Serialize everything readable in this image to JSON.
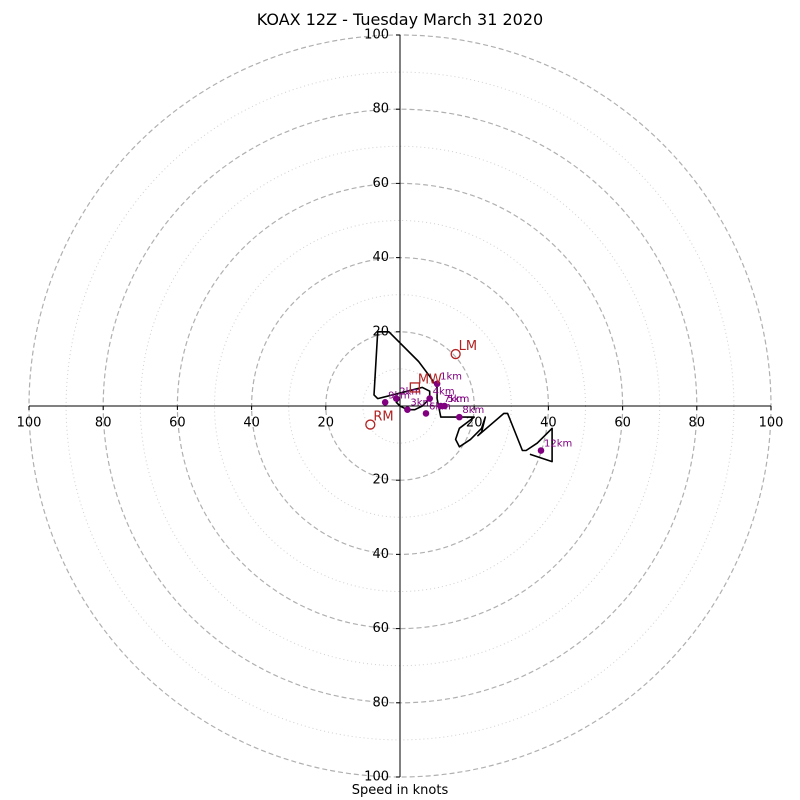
{
  "chart_data": {
    "type": "scatter",
    "title": "KOAX 12Z - Tuesday March 31 2020",
    "xlabel": "Speed in knots",
    "ylabel": "",
    "xlim": [
      -100,
      100
    ],
    "ylim": [
      -100,
      100
    ],
    "grid": "polar",
    "rings_dashed": [
      20,
      40,
      60,
      80,
      100
    ],
    "rings_dotted": [
      10,
      30,
      50,
      70,
      90
    ],
    "tick_values": [
      100,
      80,
      60,
      40,
      20
    ],
    "tick_labels": {
      "x_left": [
        "100",
        "80",
        "60",
        "40",
        "20"
      ],
      "x_right": [
        "20",
        "40",
        "60",
        "80",
        "100"
      ],
      "y_top": [
        "100",
        "80",
        "60",
        "40",
        "20"
      ],
      "y_bottom": [
        "20",
        "40",
        "60",
        "80",
        "100"
      ]
    },
    "hodograph": {
      "color": "#000000",
      "points": [
        [
          0,
          2
        ],
        [
          -1,
          1
        ],
        [
          0,
          0
        ],
        [
          2,
          -1
        ],
        [
          4,
          -1
        ],
        [
          6,
          0
        ],
        [
          8,
          2
        ],
        [
          8,
          4
        ],
        [
          6,
          5
        ],
        [
          2,
          4
        ],
        [
          -6,
          2
        ],
        [
          -7,
          3
        ],
        [
          -6,
          20
        ],
        [
          -3,
          20
        ],
        [
          5,
          12
        ],
        [
          8,
          8
        ],
        [
          10,
          5
        ],
        [
          10,
          2
        ],
        [
          11,
          -3
        ],
        [
          16,
          -3
        ],
        [
          20,
          -3
        ],
        [
          16,
          -6
        ],
        [
          15,
          -9
        ],
        [
          16,
          -11
        ],
        [
          19,
          -9
        ],
        [
          22,
          -6
        ],
        [
          23,
          -3
        ],
        [
          22,
          -7
        ],
        [
          21,
          -8
        ],
        [
          28,
          -2
        ],
        [
          29,
          -2
        ],
        [
          33,
          -12
        ],
        [
          34,
          -12
        ],
        [
          37,
          -10
        ],
        [
          41,
          -6
        ],
        [
          41,
          -15
        ],
        [
          35,
          -13
        ]
      ]
    },
    "height_markers": {
      "color": "#800080",
      "points": [
        {
          "label": "1km",
          "x": 10,
          "y": 6
        },
        {
          "label": "2km",
          "x": -1,
          "y": 2
        },
        {
          "label": "3km",
          "x": 2,
          "y": -1
        },
        {
          "label": "4km",
          "x": 8,
          "y": 2
        },
        {
          "label": "5km",
          "x": 12,
          "y": 0
        },
        {
          "label": "6km",
          "x": 7,
          "y": -2
        },
        {
          "label": "7km",
          "x": 11,
          "y": 0
        },
        {
          "label": "8km",
          "x": 16,
          "y": -3
        },
        {
          "label": "9km",
          "x": -4,
          "y": 1
        },
        {
          "label": "12km",
          "x": 38,
          "y": -12
        }
      ]
    },
    "storm_motion": {
      "color": "#b22222",
      "points": [
        {
          "label": "LM",
          "x": 15,
          "y": 14,
          "marker": "circle"
        },
        {
          "label": "MW",
          "x": 4,
          "y": 5,
          "marker": "square"
        },
        {
          "label": "RM",
          "x": -8,
          "y": -5,
          "marker": "circle"
        }
      ]
    },
    "axis_color": "#000000",
    "grid_color": "#b0b0b0"
  }
}
